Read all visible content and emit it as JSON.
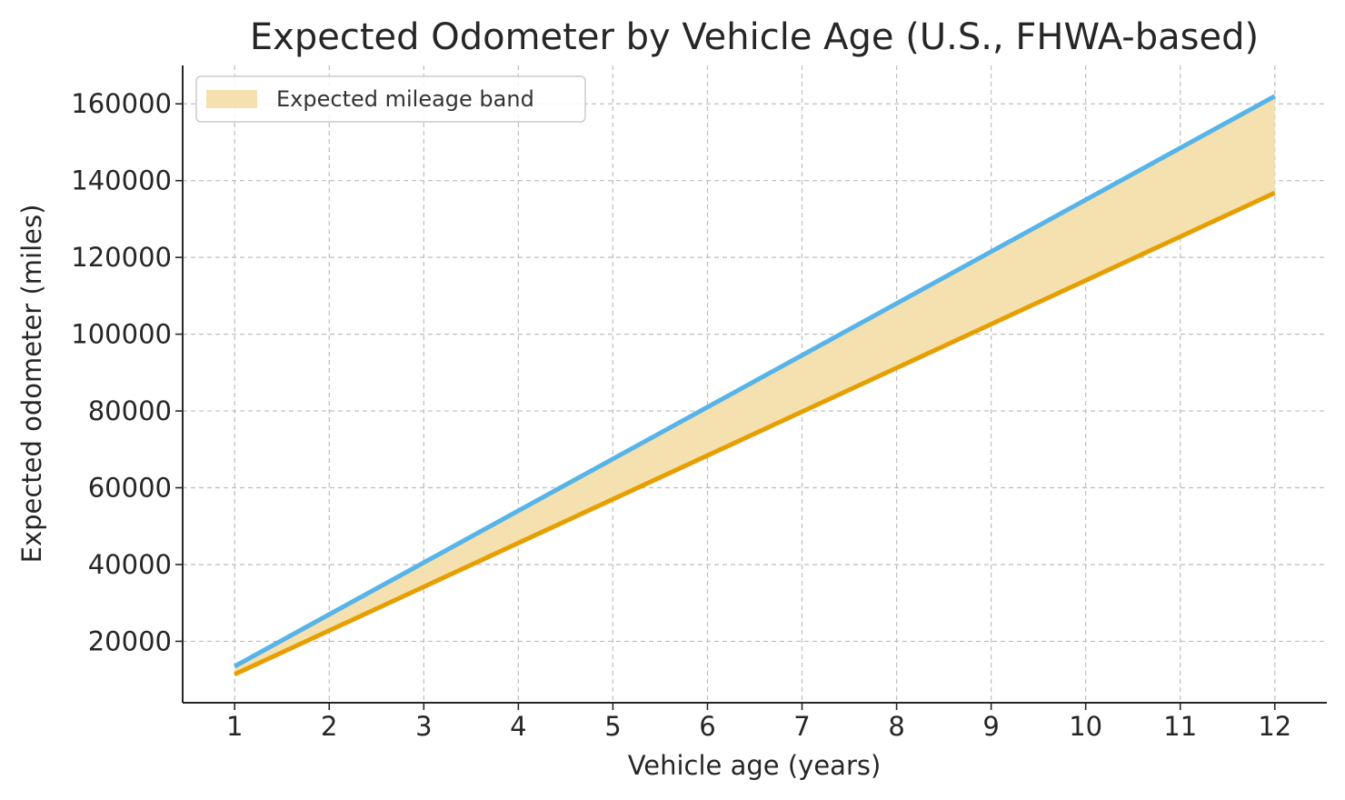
{
  "chart_data": {
    "type": "line",
    "title": "Expected Odometer by Vehicle Age (U.S., FHWA-based)",
    "xlabel": "Vehicle age (years)",
    "ylabel": "Expected odometer (miles)",
    "x": [
      1,
      2,
      3,
      4,
      5,
      6,
      7,
      8,
      9,
      10,
      11,
      12
    ],
    "xlim": [
      0.45,
      12.55
    ],
    "ylim": [
      4000,
      170000
    ],
    "xticks": [
      1,
      2,
      3,
      4,
      5,
      6,
      7,
      8,
      9,
      10,
      11,
      12
    ],
    "yticks": [
      20000,
      40000,
      60000,
      80000,
      100000,
      120000,
      140000,
      160000
    ],
    "series": [
      {
        "key": "upper",
        "values": [
          13500,
          27000,
          40500,
          54000,
          67500,
          81000,
          94500,
          108000,
          121500,
          135000,
          148500,
          162000
        ],
        "color": "#56b4e9"
      },
      {
        "key": "lower",
        "values": [
          11400,
          22800,
          34200,
          45600,
          57000,
          68400,
          79800,
          91200,
          102600,
          114000,
          125400,
          136800
        ],
        "color": "#e69f00"
      }
    ],
    "band": {
      "name": "Expected mileage band",
      "color": "#f5e0b0"
    },
    "grid": true,
    "legend": "upper-left"
  }
}
